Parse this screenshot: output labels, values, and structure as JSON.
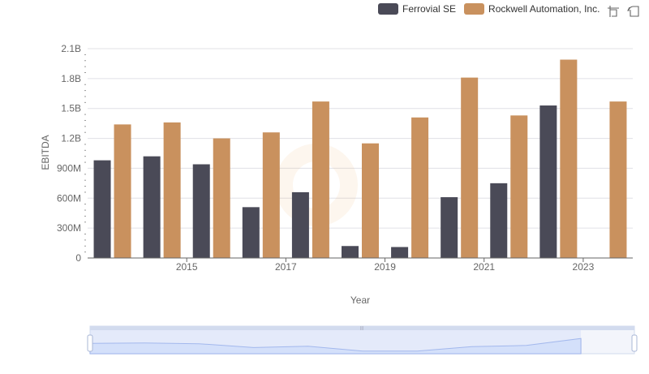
{
  "legend": {
    "series_a": "Ferrovial SE",
    "series_b": "Rockwell Automation, Inc."
  },
  "toolbox": {
    "zoom_icon": "zoom-select-icon",
    "restore_icon": "restore-icon"
  },
  "colors": {
    "series_a": "#4a4a57",
    "series_b": "#c9915e",
    "grid": "#e0e0e6",
    "zoom_fill": "#dbe5fb",
    "zoom_line": "#8fa8e6"
  },
  "chart_data": {
    "type": "bar",
    "xlabel": "Year",
    "ylabel": "EBITDA",
    "x": [
      2014,
      2015,
      2016,
      2017,
      2018,
      2019,
      2020,
      2021,
      2022,
      2023,
      2024
    ],
    "x_tick_labels": [
      "2015",
      "2017",
      "2019",
      "2021",
      "2023"
    ],
    "y_tick_labels": [
      "0",
      "300M",
      "600M",
      "900M",
      "1.2B",
      "1.5B",
      "1.8B",
      "2.1B"
    ],
    "ylim": [
      0,
      2100000000
    ],
    "grid": true,
    "legend_position": "top-right",
    "series": [
      {
        "name": "Ferrovial SE",
        "values": [
          980000000,
          1020000000,
          940000000,
          510000000,
          660000000,
          120000000,
          110000000,
          610000000,
          750000000,
          1530000000,
          null
        ]
      },
      {
        "name": "Rockwell Automation, Inc.",
        "values": [
          1340000000,
          1360000000,
          1200000000,
          1260000000,
          1570000000,
          1150000000,
          1410000000,
          1810000000,
          1430000000,
          1990000000,
          1570000000
        ]
      }
    ]
  }
}
